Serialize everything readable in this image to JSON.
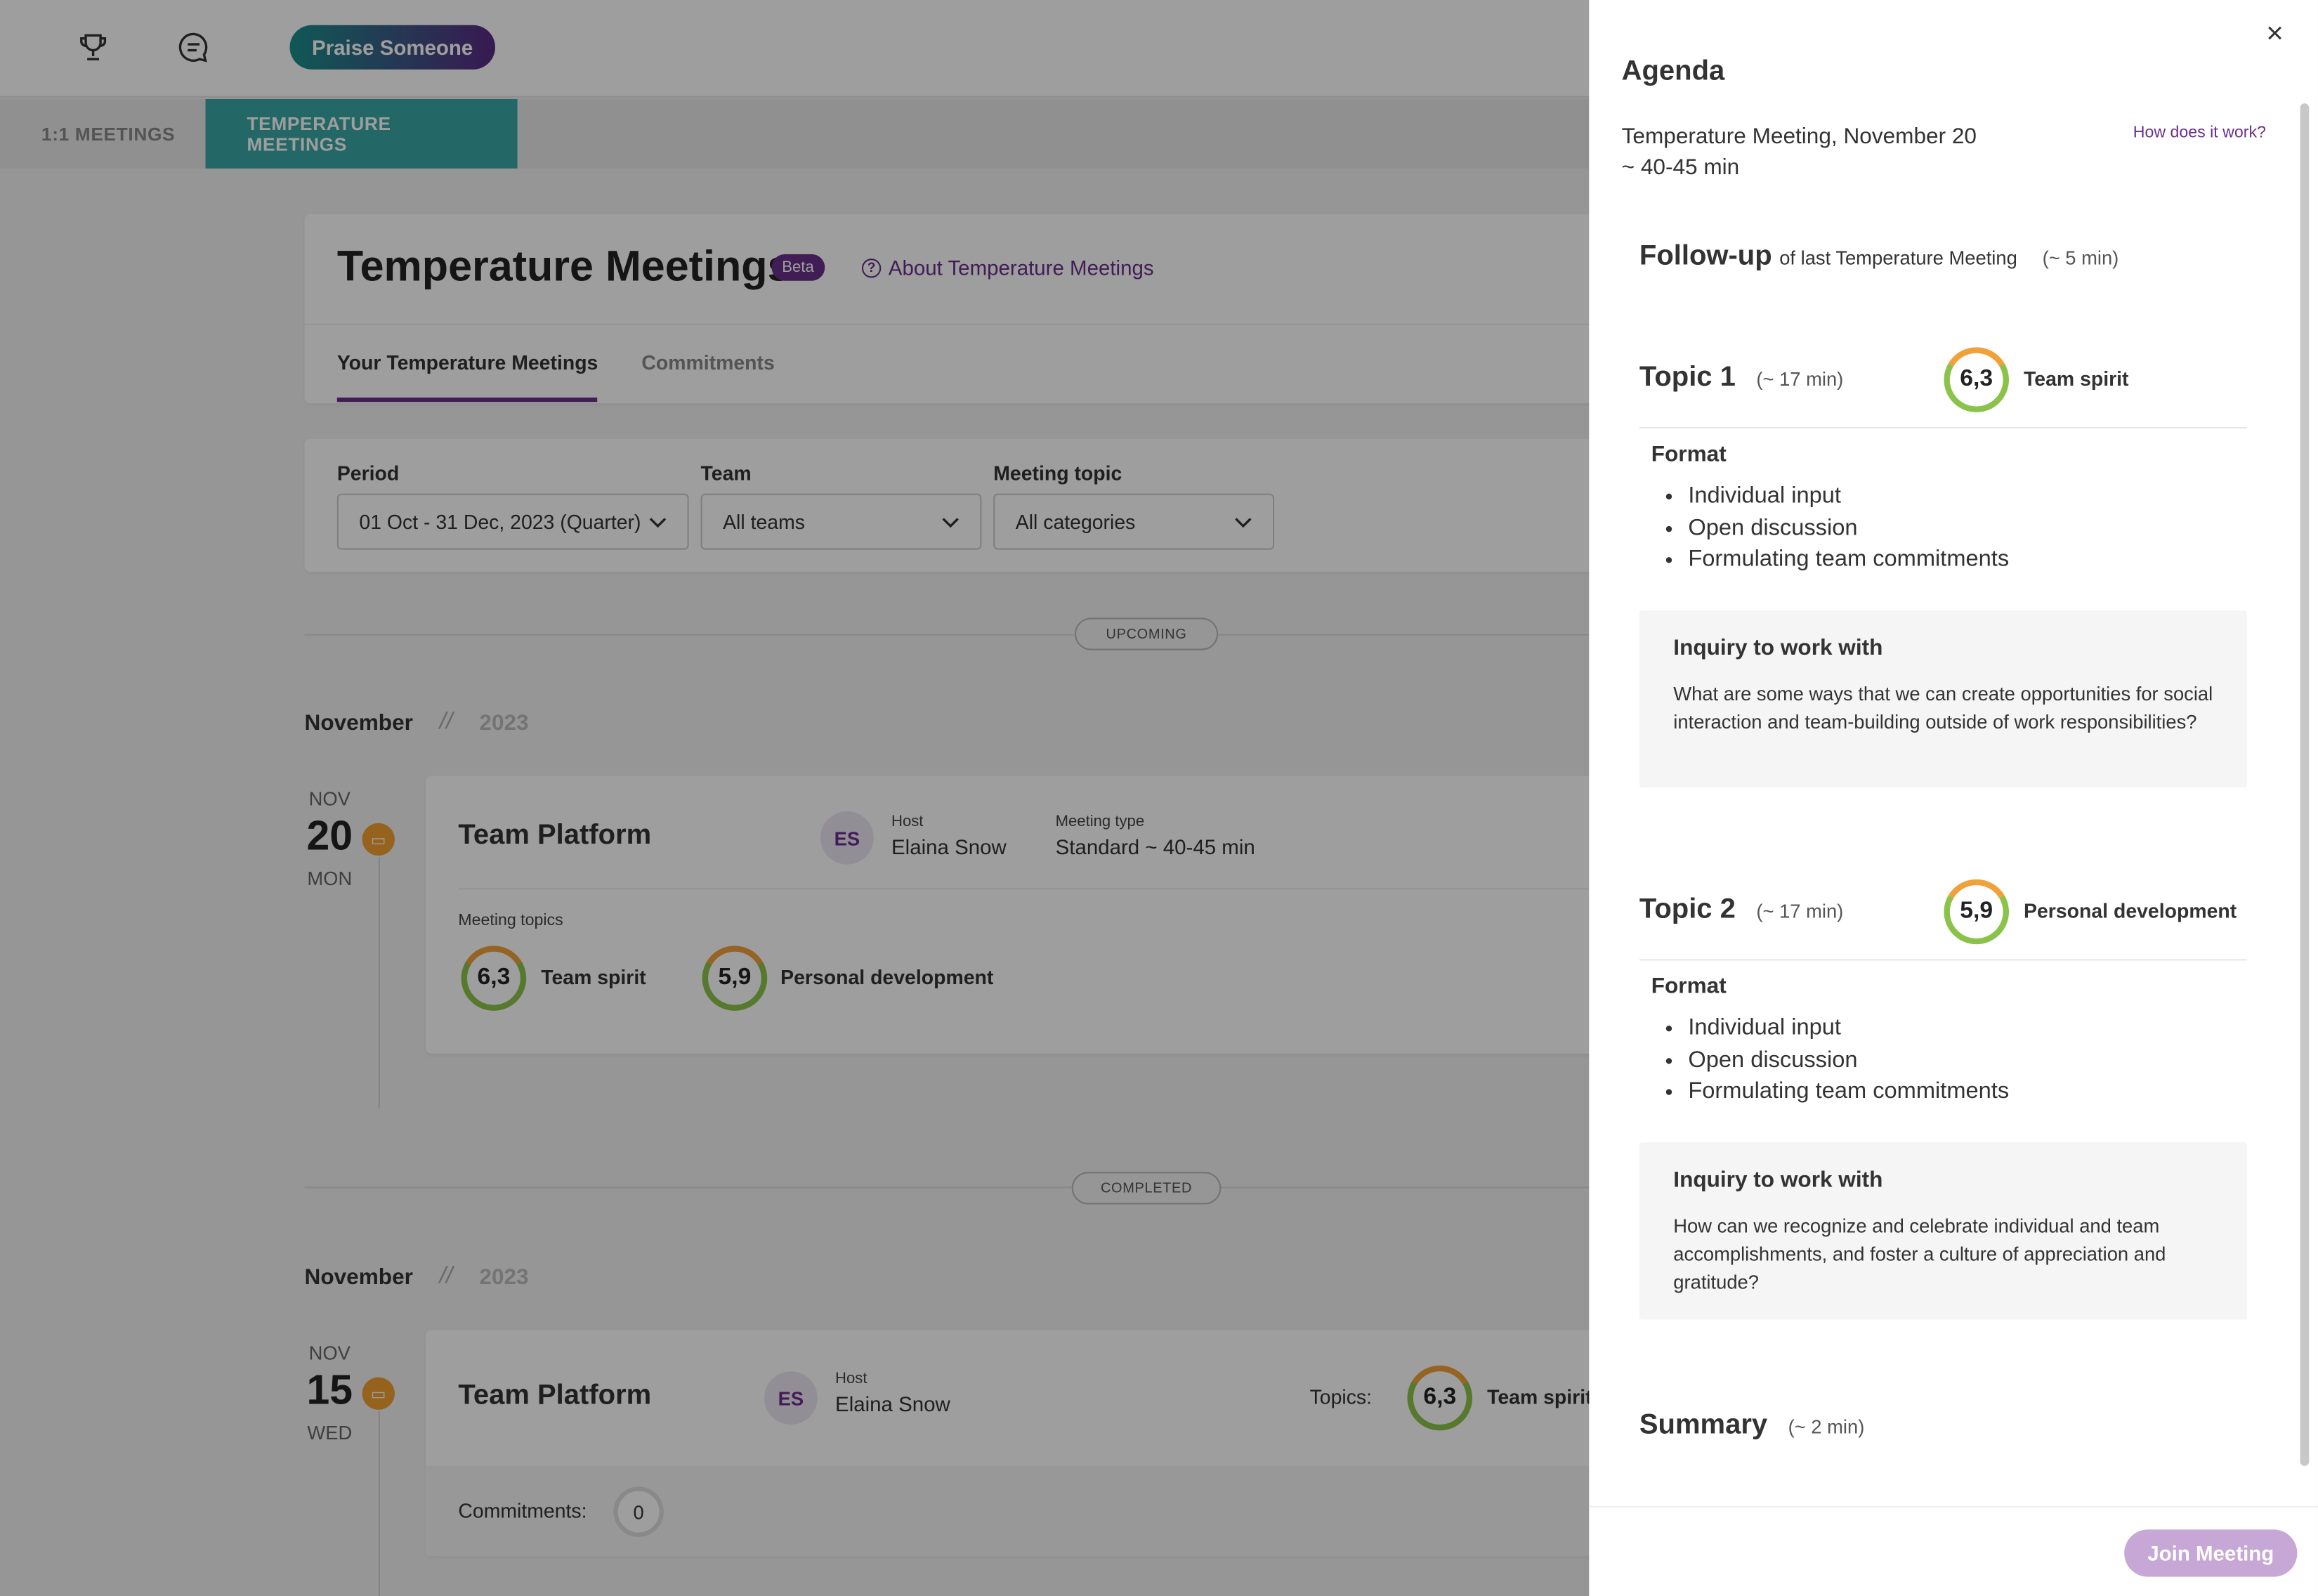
{
  "topbar": {
    "praise_label": "Praise Someone",
    "trophy_icon": "trophy-icon",
    "chat_icon": "chat-icon"
  },
  "main_tabs": [
    {
      "label": "1:1 MEETINGS"
    },
    {
      "label": "TEMPERATURE MEETINGS"
    }
  ],
  "header": {
    "title": "Temperature Meetings",
    "beta": "Beta",
    "about_link": "About Temperature Meetings",
    "tabs": [
      "Your Temperature Meetings",
      "Commitments"
    ]
  },
  "filters": {
    "period": {
      "label": "Period",
      "value": "01 Oct - 31 Dec, 2023 (Quarter)"
    },
    "team": {
      "label": "Team",
      "value": "All teams"
    },
    "topic": {
      "label": "Meeting topic",
      "value": "All categories"
    }
  },
  "upcoming": {
    "pill": "UPCOMING",
    "month": "November",
    "year": "2023",
    "meeting": {
      "mon": "NOV",
      "day": "20",
      "weekday": "MON",
      "team": "Team Platform",
      "avatar": "ES",
      "host_label": "Host",
      "host": "Elaina Snow",
      "type_label": "Meeting type",
      "type": "Standard ~ 40-45 min",
      "topics_label": "Meeting topics",
      "topics": [
        {
          "score": "6,3",
          "name": "Team spirit"
        },
        {
          "score": "5,9",
          "name": "Personal development"
        }
      ]
    }
  },
  "completed": {
    "pill": "COMPLETED",
    "month": "November",
    "year": "2023",
    "meeting": {
      "mon": "NOV",
      "day": "15",
      "weekday": "WED",
      "team": "Team Platform",
      "avatar": "ES",
      "host_label": "Host",
      "host": "Elaina Snow",
      "topics_label": "Topics:",
      "topic_score": "6,3",
      "topic_name": "Team spirit",
      "commitments_label": "Commitments:",
      "commitments": "0"
    }
  },
  "agenda": {
    "title": "Agenda",
    "close": "×",
    "how": "How does it work?",
    "meeting_line": "Temperature Meeting, November 20",
    "duration": "~ 40-45 min",
    "followup": {
      "title": "Follow-up",
      "subtitle": "of last Temperature Meeting",
      "time": "(~ 5 min)"
    },
    "topics": [
      {
        "title": "Topic 1",
        "time": "(~ 17 min)",
        "score": "6,3",
        "name": "Team spirit",
        "format_label": "Format",
        "format": [
          "Individual input",
          "Open discussion",
          "Formulating team commitments"
        ],
        "inquiry_title": "Inquiry to work with",
        "inquiry": "What are some ways that we can create opportunities for social interaction and team-building outside of work responsibilities?"
      },
      {
        "title": "Topic 2",
        "time": "(~ 17 min)",
        "score": "5,9",
        "name": "Personal development",
        "format_label": "Format",
        "format": [
          "Individual input",
          "Open discussion",
          "Formulating team commitments"
        ],
        "inquiry_title": "Inquiry to work with",
        "inquiry": "How can we recognize and celebrate individual and team accomplishments, and foster a culture of appreciation and gratitude?"
      }
    ],
    "summary": {
      "title": "Summary",
      "time": "(~ 2 min)"
    },
    "join": "Join Meeting"
  }
}
